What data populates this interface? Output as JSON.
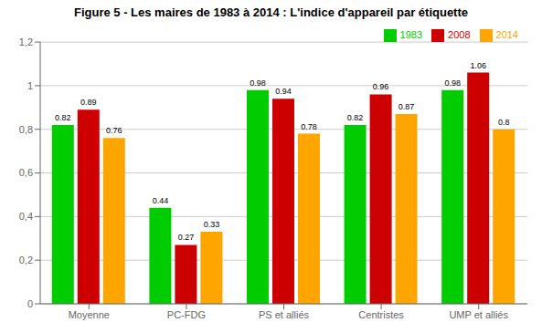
{
  "chart_data": {
    "type": "bar",
    "title": "Figure 5 - Les maires de 1983 à 2014 : L'indice d'appareil par étiquette",
    "categories": [
      "Moyenne",
      "PC-FDG",
      "PS et alliés",
      "Centristes",
      "UMP et alliés"
    ],
    "series": [
      {
        "name": "1983",
        "color": "#00CC00",
        "values": [
          0.82,
          0.44,
          0.98,
          0.82,
          0.98
        ]
      },
      {
        "name": "2008",
        "color": "#CC0000",
        "values": [
          0.89,
          0.27,
          0.94,
          0.96,
          1.06
        ]
      },
      {
        "name": "2014",
        "color": "#FFA500",
        "values": [
          0.76,
          0.33,
          0.78,
          0.87,
          0.8
        ]
      }
    ],
    "ylim": [
      0,
      1.2
    ],
    "yticks": [
      0,
      {
        "value": 0.2,
        "label": "0,2"
      },
      {
        "value": 0.4,
        "label": "0,4"
      },
      {
        "value": 0.6,
        "label": "0,6"
      },
      {
        "value": 0.8,
        "label": "0,8"
      },
      1,
      {
        "value": 1.2,
        "label": "1,2"
      }
    ],
    "grid": true,
    "legend": "upper right",
    "data_labels": true
  }
}
